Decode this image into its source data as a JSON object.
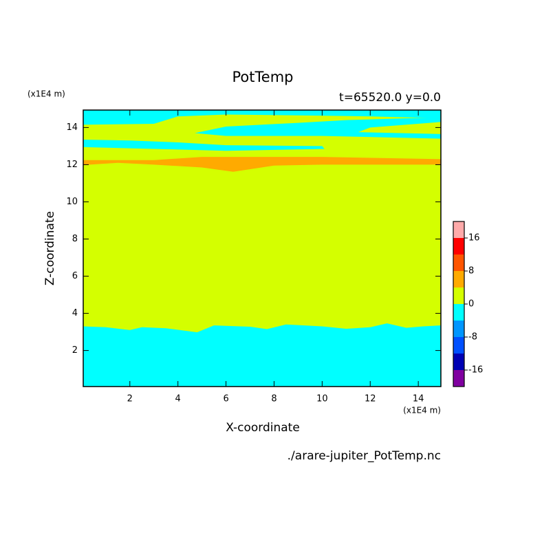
{
  "chart_data": {
    "type": "contour",
    "title": "PotTemp",
    "subtitle": "t=65520.0 y=0.0",
    "x_label": "X-coordinate",
    "y_label": "Z-coordinate",
    "x_unit": "(x1E4 m)",
    "y_unit": "(x1E4 m)",
    "file_label": "./arare-jupiter_PotTemp.nc",
    "xlim": [
      0.06,
      14.94
    ],
    "ylim": [
      0.06,
      14.94
    ],
    "xticks": [
      2,
      4,
      6,
      8,
      10,
      12,
      14
    ],
    "yticks": [
      2,
      4,
      6,
      8,
      10,
      12,
      14
    ],
    "background_level": 0,
    "levels": [
      -20,
      -16,
      -12,
      -8,
      -4,
      0,
      4,
      8,
      12,
      16,
      20
    ],
    "colors": [
      "#8000a0",
      "#0000b4",
      "#0050ff",
      "#0096ff",
      "#00ffff",
      "#d4ff00",
      "#ffaa00",
      "#ff5500",
      "#ff0000",
      "#ffaaaa"
    ],
    "colorbar_ticks": [
      -16,
      -8,
      0,
      8,
      16
    ],
    "regions": [
      {
        "level": -4,
        "x": [
          0.06,
          0.06,
          1,
          2,
          2.5,
          3.5,
          4.8,
          5.5,
          7,
          7.7,
          8.5,
          10,
          11,
          12,
          12.7,
          13.5,
          14.2,
          14.94,
          14.94
        ],
        "y": [
          0.06,
          3.3,
          3.25,
          3.1,
          3.25,
          3.2,
          2.98,
          3.35,
          3.28,
          3.15,
          3.4,
          3.3,
          3.17,
          3.25,
          3.46,
          3.22,
          3.3,
          3.35,
          0.06
        ]
      },
      {
        "level": 4,
        "x": [
          0.06,
          3,
          5,
          10,
          14.94,
          14.94,
          10,
          8,
          6.3,
          5,
          3,
          1.5,
          0.06
        ],
        "y": [
          12.25,
          12.25,
          12.42,
          12.42,
          12.3,
          12.0,
          12.0,
          11.95,
          11.62,
          11.85,
          12.0,
          12.1,
          11.98
        ]
      },
      {
        "level": -4,
        "x": [
          0.06,
          14.94,
          14.94,
          12,
          9,
          6,
          4,
          3,
          0.06
        ],
        "y": [
          14.94,
          14.94,
          14.5,
          14.6,
          14.65,
          14.7,
          14.6,
          14.2,
          14.15
        ]
      },
      {
        "level": -4,
        "x": [
          0.06,
          2,
          4,
          6,
          10,
          10.1,
          6,
          3,
          0.06
        ],
        "y": [
          13.35,
          13.3,
          13.2,
          13.05,
          13.0,
          12.85,
          12.75,
          12.85,
          12.95
        ]
      },
      {
        "level": -4,
        "x": [
          4.7,
          6,
          9,
          11,
          14.94,
          14.94,
          12,
          11.5,
          14.94,
          14.94,
          10,
          6
        ],
        "y": [
          13.7,
          14.05,
          14.25,
          14.4,
          14.55,
          14.3,
          14.0,
          13.75,
          13.65,
          13.4,
          13.55,
          13.55
        ]
      }
    ]
  }
}
